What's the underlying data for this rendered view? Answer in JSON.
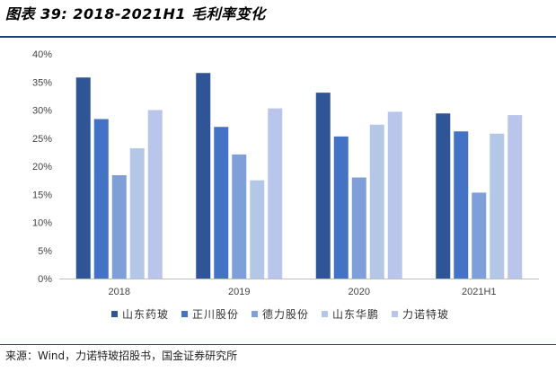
{
  "figure": {
    "title": "图表 39:  2018-2021H1 毛利率变化",
    "source": "来源：Wind，力诺特玻招股书，国金证券研究所"
  },
  "chart_data": {
    "type": "bar",
    "categories": [
      "2018",
      "2019",
      "2020",
      "2021H1"
    ],
    "series": [
      {
        "name": "山东药玻",
        "color": "#2f5597",
        "values": [
          35.8,
          36.6,
          33.1,
          29.4
        ]
      },
      {
        "name": "正川股份",
        "color": "#4472c4",
        "values": [
          28.4,
          27.0,
          25.3,
          26.2
        ]
      },
      {
        "name": "德力股份",
        "color": "#7f9fd9",
        "values": [
          18.4,
          22.1,
          18.0,
          15.3
        ]
      },
      {
        "name": "山东华鹏",
        "color": "#b4c7e7",
        "values": [
          23.2,
          17.5,
          27.4,
          25.8
        ]
      },
      {
        "name": "力诺特玻",
        "color": "#b9c5ea",
        "values": [
          30.0,
          30.3,
          29.7,
          29.1
        ]
      }
    ],
    "y_ticks": [
      "0%",
      "5%",
      "10%",
      "15%",
      "20%",
      "25%",
      "30%",
      "35%",
      "40%"
    ],
    "ylim": [
      0,
      40
    ],
    "grid": false,
    "legend_position": "bottom"
  }
}
